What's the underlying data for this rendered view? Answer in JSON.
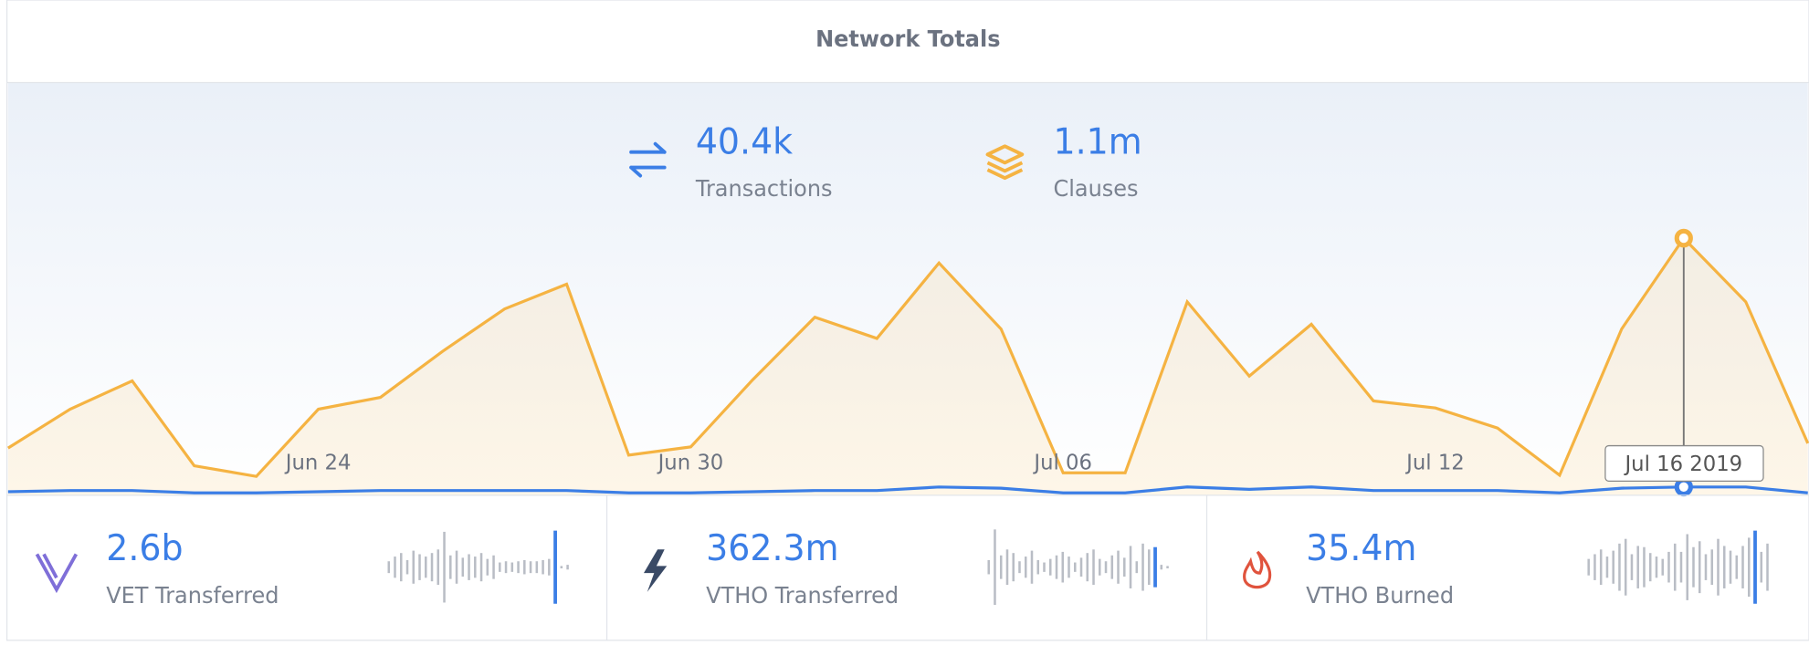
{
  "header": {
    "title": "Network Totals"
  },
  "top_stats": [
    {
      "value": "40.4k",
      "label": "Transactions"
    },
    {
      "value": "1.1m",
      "label": "Clauses"
    }
  ],
  "chart_data": {
    "type": "line",
    "categories": [
      null,
      null,
      null,
      null,
      null,
      "Jun 24",
      null,
      null,
      null,
      null,
      null,
      "Jun 30",
      null,
      null,
      null,
      null,
      null,
      "Jul 06",
      null,
      null,
      null,
      null,
      null,
      "Jul 12",
      null,
      null,
      null,
      null,
      null,
      null
    ],
    "series": [
      {
        "name": "Clauses",
        "color": "#f5b342",
        "values": [
          40,
          73,
          97,
          25,
          16,
          73,
          83,
          122,
          158,
          179,
          34,
          41,
          98,
          151,
          133,
          197,
          141,
          19,
          19,
          164,
          101,
          145,
          80,
          74,
          57,
          17,
          141,
          218,
          164,
          44
        ]
      },
      {
        "name": "Transactions",
        "color": "#3b7ee6",
        "values": [
          3,
          4,
          4,
          2,
          2,
          3,
          4,
          4,
          4,
          4,
          2,
          2,
          3,
          4,
          4,
          7,
          6,
          2,
          2,
          7,
          5,
          7,
          4,
          4,
          4,
          2,
          6,
          7,
          7,
          2
        ]
      }
    ],
    "ylim": [
      0,
      350
    ],
    "highlight_index": 27,
    "tooltip": "Jul 16 2019"
  },
  "cards": [
    {
      "value": "2.6b",
      "label": "VET Transferred",
      "highlight_index": 27,
      "sparkline": [
        10,
        18,
        24,
        12,
        28,
        22,
        18,
        24,
        30,
        60,
        20,
        28,
        16,
        22,
        18,
        24,
        14,
        20,
        8,
        10,
        8,
        10,
        12,
        10,
        10,
        12,
        14,
        62,
        2,
        4
      ]
    },
    {
      "value": "362.3m",
      "label": "VTHO Transferred",
      "highlight_index": 27,
      "sparkline": [
        12,
        64,
        20,
        30,
        24,
        10,
        18,
        28,
        12,
        8,
        14,
        20,
        26,
        18,
        8,
        16,
        24,
        30,
        14,
        10,
        20,
        28,
        16,
        36,
        10,
        40,
        30,
        34,
        4,
        2
      ]
    },
    {
      "value": "35.4m",
      "label": "VTHO Burned",
      "highlight_index": 27,
      "sparkline": [
        14,
        22,
        30,
        18,
        28,
        40,
        48,
        22,
        36,
        34,
        24,
        18,
        14,
        26,
        40,
        26,
        56,
        34,
        44,
        22,
        30,
        48,
        36,
        28,
        20,
        36,
        50,
        62,
        26,
        40
      ]
    }
  ]
}
